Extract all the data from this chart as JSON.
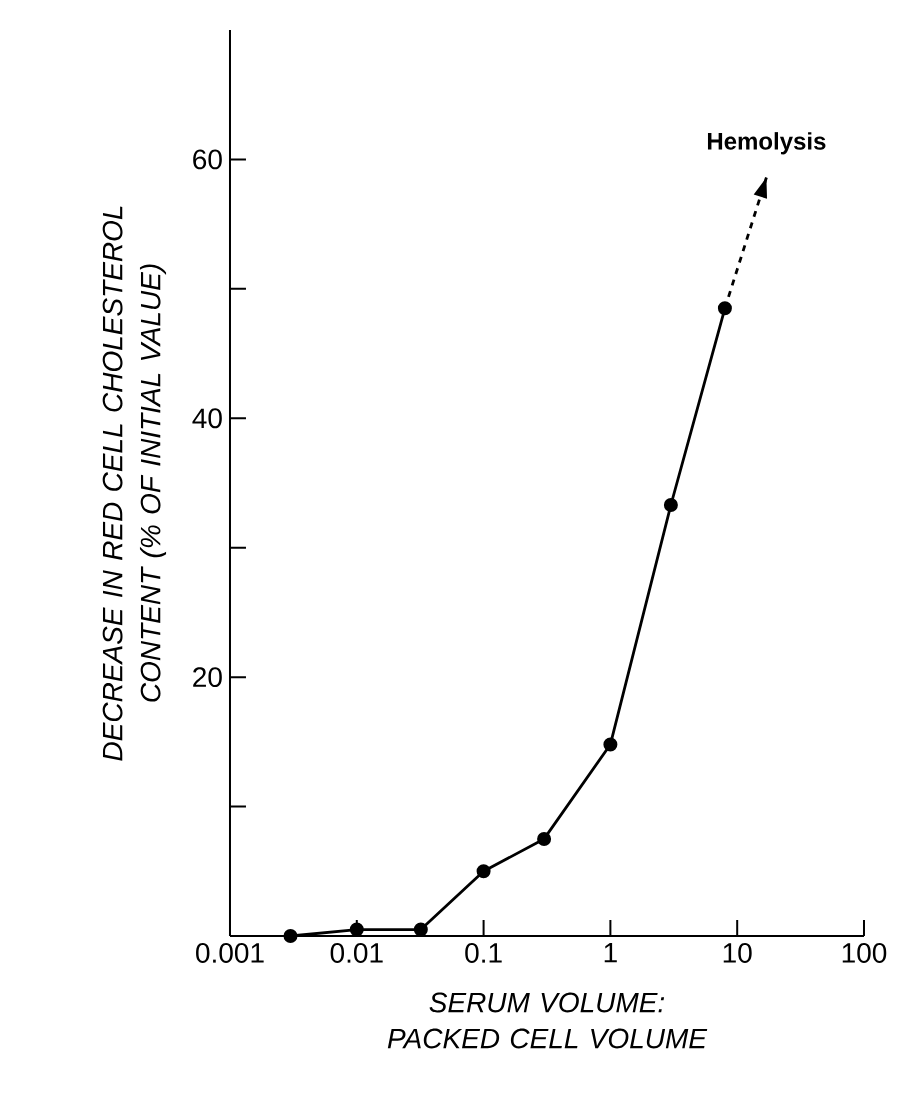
{
  "chart_data": {
    "type": "line",
    "xlabel": "SERUM VOLUME: PACKED CELL VOLUME",
    "ylabel": "DECREASE IN RED CELL CHOLESTEROL CONTENT (% OF INITIAL VALUE)",
    "annotations": [
      "Hemolysis"
    ],
    "log": "x",
    "xlim": [
      0.001,
      100
    ],
    "xticks": [
      0.001,
      0.01,
      0.1,
      1,
      10,
      100
    ],
    "ylim": [
      0,
      70
    ],
    "yticks": [
      {
        "value": 10,
        "label": null
      },
      20,
      {
        "value": 30,
        "label": null
      },
      40,
      {
        "value": 50,
        "label": null
      },
      60
    ],
    "series": [
      {
        "color": "#000000",
        "marker": "circle",
        "line_style": "solid",
        "x": [
          0.003,
          0.01,
          0.032,
          0.1,
          0.3,
          1,
          3,
          8
        ],
        "values": [
          0,
          0.5,
          0.5,
          5,
          7.5,
          14.8,
          33.3,
          48.5
        ]
      },
      {
        "color": "#000000",
        "marker": "none",
        "line_style": "dashed",
        "x": [
          8,
          17
        ],
        "values": [
          48.5,
          58.6
        ]
      }
    ]
  }
}
